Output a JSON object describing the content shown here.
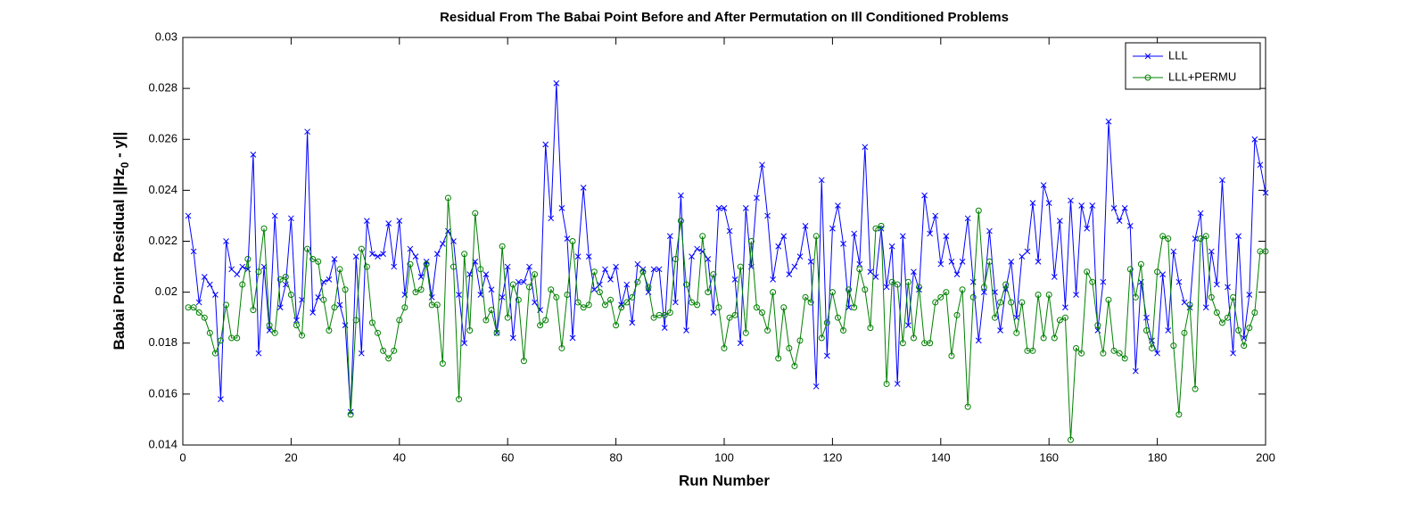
{
  "chart_data": {
    "type": "line",
    "title": "Residual From The Babai Point Before and After Permutation on Ill Conditioned Problems",
    "xlabel": "Run Number",
    "ylabel": [
      "Babai Point Residual ||Hz",
      "0",
      " - y||"
    ],
    "xlim": [
      0,
      200
    ],
    "xticks": [
      0,
      20,
      40,
      60,
      80,
      100,
      120,
      140,
      160,
      180,
      200
    ],
    "ylim": [
      0.014,
      0.03
    ],
    "yticks": [
      0.014,
      0.016,
      0.018,
      0.02,
      0.022,
      0.024,
      0.026,
      0.028,
      0.03
    ],
    "legend": "upper right",
    "x": [
      1,
      2,
      3,
      4,
      5,
      6,
      7,
      8,
      9,
      10,
      11,
      12,
      13,
      14,
      15,
      16,
      17,
      18,
      19,
      20,
      21,
      22,
      23,
      24,
      25,
      26,
      27,
      28,
      29,
      30,
      31,
      32,
      33,
      34,
      35,
      36,
      37,
      38,
      39,
      40,
      41,
      42,
      43,
      44,
      45,
      46,
      47,
      48,
      49,
      50,
      51,
      52,
      53,
      54,
      55,
      56,
      57,
      58,
      59,
      60,
      61,
      62,
      63,
      64,
      65,
      66,
      67,
      68,
      69,
      70,
      71,
      72,
      73,
      74,
      75,
      76,
      77,
      78,
      79,
      80,
      81,
      82,
      83,
      84,
      85,
      86,
      87,
      88,
      89,
      90,
      91,
      92,
      93,
      94,
      95,
      96,
      97,
      98,
      99,
      100,
      101,
      102,
      103,
      104,
      105,
      106,
      107,
      108,
      109,
      110,
      111,
      112,
      113,
      114,
      115,
      116,
      117,
      118,
      119,
      120,
      121,
      122,
      123,
      124,
      125,
      126,
      127,
      128,
      129,
      130,
      131,
      132,
      133,
      134,
      135,
      136,
      137,
      138,
      139,
      140,
      141,
      142,
      143,
      144,
      145,
      146,
      147,
      148,
      149,
      150,
      151,
      152,
      153,
      154,
      155,
      156,
      157,
      158,
      159,
      160,
      161,
      162,
      163,
      164,
      165,
      166,
      167,
      168,
      169,
      170,
      171,
      172,
      173,
      174,
      175,
      176,
      177,
      178,
      179,
      180,
      181,
      182,
      183,
      184,
      185,
      186,
      187,
      188,
      189,
      190,
      191,
      192,
      193,
      194,
      195,
      196,
      197,
      198,
      199,
      200
    ],
    "series": [
      {
        "name": "LLL",
        "color": "#0000ff",
        "marker": "x",
        "values": [
          0.023,
          0.0216,
          0.0196,
          0.0206,
          0.0203,
          0.0199,
          0.0158,
          0.022,
          0.0209,
          0.0207,
          0.021,
          0.0209,
          0.0254,
          0.0176,
          0.021,
          0.0185,
          0.023,
          0.0194,
          0.0203,
          0.0229,
          0.0189,
          0.0197,
          0.0263,
          0.0192,
          0.0198,
          0.0204,
          0.0205,
          0.0213,
          0.0195,
          0.0187,
          0.0153,
          0.0214,
          0.0176,
          0.0228,
          0.0215,
          0.0214,
          0.0215,
          0.0227,
          0.021,
          0.0228,
          0.0199,
          0.0217,
          0.0214,
          0.0206,
          0.0212,
          0.0198,
          0.0215,
          0.0219,
          0.0224,
          0.022,
          0.0199,
          0.018,
          0.0207,
          0.0212,
          0.0199,
          0.0207,
          0.0201,
          0.0184,
          0.0198,
          0.021,
          0.0182,
          0.0204,
          0.0204,
          0.021,
          0.0196,
          0.0193,
          0.0258,
          0.0229,
          0.0282,
          0.0233,
          0.0221,
          0.0182,
          0.0214,
          0.0241,
          0.0214,
          0.0201,
          0.0203,
          0.0209,
          0.0205,
          0.021,
          0.0195,
          0.0203,
          0.0188,
          0.0211,
          0.0209,
          0.02,
          0.0209,
          0.0209,
          0.0186,
          0.0222,
          0.0196,
          0.0238,
          0.0185,
          0.0214,
          0.0217,
          0.0216,
          0.0213,
          0.0192,
          0.0233,
          0.0233,
          0.0224,
          0.0205,
          0.018,
          0.0233,
          0.021,
          0.0237,
          0.025,
          0.023,
          0.0205,
          0.0218,
          0.0222,
          0.0207,
          0.021,
          0.0214,
          0.0226,
          0.0212,
          0.0163,
          0.0244,
          0.0175,
          0.0225,
          0.0234,
          0.0219,
          0.0194,
          0.0223,
          0.0211,
          0.0257,
          0.0208,
          0.0206,
          0.0225,
          0.0202,
          0.0218,
          0.0164,
          0.0222,
          0.0187,
          0.0208,
          0.0201,
          0.0238,
          0.0223,
          0.023,
          0.0211,
          0.0222,
          0.0212,
          0.0207,
          0.0212,
          0.0229,
          0.0204,
          0.0181,
          0.02,
          0.0224,
          0.02,
          0.0185,
          0.0201,
          0.0212,
          0.019,
          0.0214,
          0.0216,
          0.0235,
          0.0212,
          0.0242,
          0.0235,
          0.0206,
          0.0228,
          0.0194,
          0.0236,
          0.0199,
          0.0234,
          0.0225,
          0.0234,
          0.0185,
          0.0204,
          0.0267,
          0.0233,
          0.0228,
          0.0233,
          0.0226,
          0.0169,
          0.0204,
          0.019,
          0.0181,
          0.0176,
          0.0207,
          0.0185,
          0.0216,
          0.0204,
          0.0196,
          0.0194,
          0.0221,
          0.0231,
          0.0194,
          0.0216,
          0.0203,
          0.0244,
          0.0202,
          0.0176,
          0.0222,
          0.0182,
          0.0199,
          0.026,
          0.025,
          0.0239
        ]
      },
      {
        "name": "LLL+PERMU",
        "color": "#008000",
        "marker": "o",
        "values": [
          0.0194,
          0.0194,
          0.0192,
          0.019,
          0.0184,
          0.0176,
          0.0181,
          0.0195,
          0.0182,
          0.0182,
          0.0203,
          0.0213,
          0.0193,
          0.0208,
          0.0225,
          0.0187,
          0.0184,
          0.0205,
          0.0206,
          0.0199,
          0.0187,
          0.0183,
          0.0217,
          0.0213,
          0.0212,
          0.0197,
          0.0185,
          0.0194,
          0.0209,
          0.0201,
          0.0152,
          0.0189,
          0.0217,
          0.021,
          0.0188,
          0.0184,
          0.0177,
          0.0174,
          0.0177,
          0.0189,
          0.0194,
          0.0211,
          0.02,
          0.0201,
          0.0211,
          0.0195,
          0.0195,
          0.0172,
          0.0237,
          0.021,
          0.0158,
          0.0215,
          0.0185,
          0.0231,
          0.0209,
          0.0189,
          0.0193,
          0.0184,
          0.0218,
          0.019,
          0.0203,
          0.0197,
          0.0173,
          0.0202,
          0.0207,
          0.0187,
          0.0189,
          0.0201,
          0.0198,
          0.0178,
          0.0199,
          0.022,
          0.0196,
          0.0194,
          0.0195,
          0.0208,
          0.02,
          0.0195,
          0.0197,
          0.0187,
          0.0194,
          0.0196,
          0.0198,
          0.0204,
          0.0208,
          0.0202,
          0.019,
          0.0191,
          0.0191,
          0.0192,
          0.0213,
          0.0228,
          0.0203,
          0.0196,
          0.0195,
          0.0222,
          0.02,
          0.0207,
          0.0194,
          0.0178,
          0.019,
          0.0191,
          0.021,
          0.0184,
          0.022,
          0.0194,
          0.0192,
          0.0185,
          0.02,
          0.0174,
          0.0194,
          0.0178,
          0.0171,
          0.0181,
          0.0198,
          0.0196,
          0.0222,
          0.0182,
          0.0188,
          0.02,
          0.019,
          0.0185,
          0.0201,
          0.0194,
          0.0209,
          0.0201,
          0.0186,
          0.0225,
          0.0226,
          0.0164,
          0.0204,
          0.0203,
          0.018,
          0.0204,
          0.0182,
          0.0202,
          0.018,
          0.018,
          0.0196,
          0.0198,
          0.02,
          0.0175,
          0.0191,
          0.0201,
          0.0155,
          0.0198,
          0.0232,
          0.0202,
          0.0212,
          0.019,
          0.0196,
          0.0203,
          0.0196,
          0.0184,
          0.0196,
          0.0177,
          0.0177,
          0.0199,
          0.0182,
          0.0199,
          0.0182,
          0.0189,
          0.019,
          0.0142,
          0.0178,
          0.0176,
          0.0208,
          0.0204,
          0.0187,
          0.0176,
          0.0197,
          0.0177,
          0.0176,
          0.0174,
          0.0209,
          0.0198,
          0.0211,
          0.0185,
          0.0178,
          0.0208,
          0.0222,
          0.0221,
          0.0179,
          0.0152,
          0.0184,
          0.0195,
          0.0162,
          0.0221,
          0.0222,
          0.0198,
          0.0192,
          0.0188,
          0.019,
          0.0198,
          0.0185,
          0.0179,
          0.0186,
          0.0192,
          0.0216,
          0.0216
        ]
      }
    ]
  }
}
